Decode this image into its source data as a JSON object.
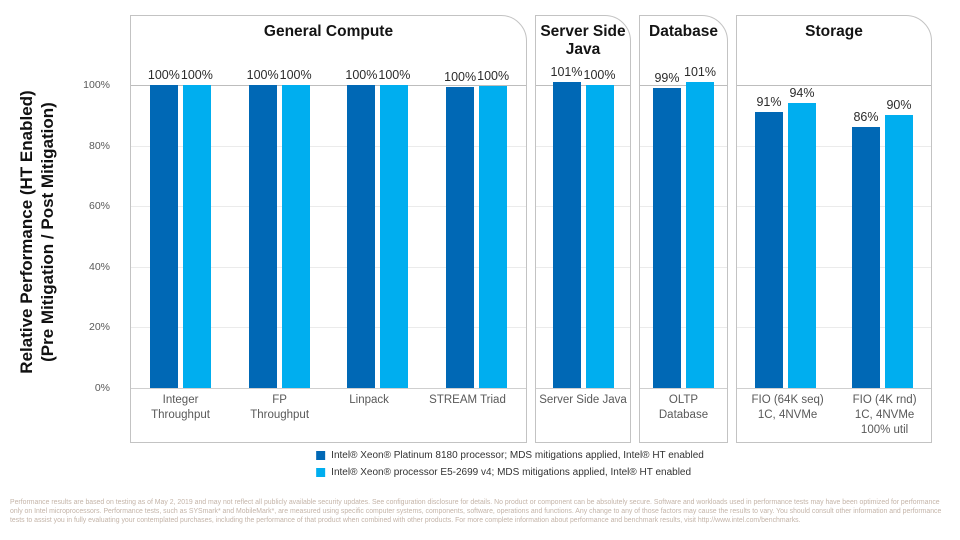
{
  "y_axis": {
    "title_line1": "Relative Performance (HT Enabled)",
    "title_line2": "(Pre Mitigation / Post Mitigation)"
  },
  "chart_data": {
    "type": "bar",
    "title": "",
    "xlabel": "",
    "ylabel": "Relative Performance (HT Enabled) (Pre Mitigation / Post Mitigation)",
    "ylim": [
      0,
      110
    ],
    "yticks": [
      0,
      20,
      40,
      60,
      80,
      100
    ],
    "ytick_labels": [
      "0%",
      "20%",
      "40%",
      "60%",
      "80%",
      "100%"
    ],
    "grid": true,
    "legend_position": "bottom",
    "series": [
      {
        "name": "Intel® Xeon® Platinum 8180 processor; MDS mitigations applied, Intel® HT enabled",
        "color": "#0068b5"
      },
      {
        "name": "Intel® Xeon® processor E5-2699 v4; MDS mitigations applied, Intel® HT enabled",
        "color": "#00aeef"
      }
    ],
    "sections": [
      {
        "title_lines": [
          "General Compute"
        ],
        "groups": [
          {
            "category_lines": [
              "Integer",
              "Throughput"
            ],
            "values": [
              100,
              100
            ],
            "value_labels": [
              "100%",
              "100%"
            ]
          },
          {
            "category_lines": [
              "FP",
              "Throughput"
            ],
            "values": [
              100,
              100
            ],
            "value_labels": [
              "100%",
              "100%"
            ]
          },
          {
            "category_lines": [
              "Linpack"
            ],
            "values": [
              100,
              100
            ],
            "value_labels": [
              "100%",
              "100%"
            ]
          },
          {
            "category_lines": [
              "STREAM Triad"
            ],
            "values": [
              99.5,
              99.7
            ],
            "value_labels": [
              "100%",
              "100%"
            ]
          }
        ]
      },
      {
        "title_lines": [
          "Server Side",
          "Java"
        ],
        "groups": [
          {
            "category_lines": [
              "Server Side Java"
            ],
            "values": [
              101,
              100
            ],
            "value_labels": [
              "101%",
              "100%"
            ]
          }
        ]
      },
      {
        "title_lines": [
          "Database"
        ],
        "groups": [
          {
            "category_lines": [
              "OLTP",
              "Database"
            ],
            "values": [
              99,
              101
            ],
            "value_labels": [
              "99%",
              "101%"
            ]
          }
        ]
      },
      {
        "title_lines": [
          "Storage"
        ],
        "groups": [
          {
            "category_lines": [
              "FIO (64K seq)",
              "1C, 4NVMe"
            ],
            "values": [
              91,
              94
            ],
            "value_labels": [
              "91%",
              "94%"
            ]
          },
          {
            "category_lines": [
              "FIO (4K rnd)",
              "1C, 4NVMe",
              "100% util"
            ],
            "values": [
              86,
              90
            ],
            "value_labels": [
              "86%",
              "90%"
            ]
          }
        ]
      }
    ]
  },
  "legend": {
    "items": [
      {
        "label": "Intel® Xeon® Platinum 8180 processor; MDS mitigations applied, Intel® HT enabled",
        "color": "#0068b5"
      },
      {
        "label": "Intel® Xeon® processor E5-2699 v4; MDS mitigations applied, Intel® HT enabled",
        "color": "#00aeef"
      }
    ]
  },
  "footer": {
    "lines": [
      "Performance results are based on testing as of May 2, 2019 and may not reflect all publicly available security updates. See configuration disclosure for details. No product or component can be absolutely secure. Software and workloads used in performance tests may have been optimized for performance",
      "only on Intel microprocessors. Performance tests, such as SYSmark* and MobileMark*, are measured using specific computer systems, components, software, operations and functions.  Any change to any of those factors may cause the results to vary.  You should consult other information and performance",
      "tests to assist you in fully evaluating your contemplated purchases, including the performance of that product when combined with other products. For more complete information about performance and benchmark results, visit http://www.intel.com/benchmarks."
    ]
  }
}
